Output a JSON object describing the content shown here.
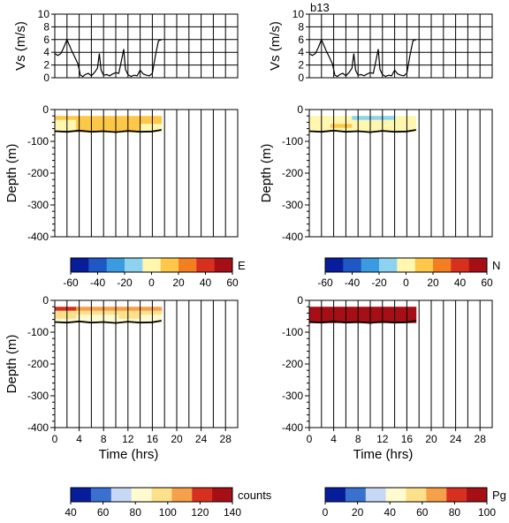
{
  "figure_tag": "b13",
  "colorbars": [
    {
      "id": "E",
      "label": "E",
      "ticks": [
        "-60",
        "-40",
        "-20",
        "0",
        "20",
        "40",
        "60"
      ],
      "colors": [
        "#081d9c",
        "#1f58c4",
        "#3a9be0",
        "#8dd3f0",
        "#fff6b0",
        "#fdc84a",
        "#f47f20",
        "#d7301f",
        "#a50f15"
      ]
    },
    {
      "id": "N",
      "label": "N",
      "ticks": [
        "-60",
        "-40",
        "-20",
        "0",
        "20",
        "40",
        "60"
      ],
      "colors": [
        "#081d9c",
        "#1f58c4",
        "#3a9be0",
        "#8dd3f0",
        "#fff6b0",
        "#fdc84a",
        "#f47f20",
        "#d7301f",
        "#a50f15"
      ]
    },
    {
      "id": "counts",
      "label": "counts",
      "ticks": [
        "40",
        "60",
        "80",
        "100",
        "120",
        "140"
      ],
      "colors": [
        "#081d9c",
        "#3a70d0",
        "#c7d8f5",
        "#fffbd0",
        "#fde08a",
        "#f6a04a",
        "#d7301f",
        "#a50f15"
      ]
    },
    {
      "id": "Pg",
      "label": "Pg",
      "ticks": [
        "0",
        "20",
        "40",
        "60",
        "80",
        "100"
      ],
      "colors": [
        "#081d9c",
        "#3a70d0",
        "#c7d8f5",
        "#fffbd0",
        "#fde08a",
        "#f6a04a",
        "#d7301f",
        "#a50f15"
      ]
    }
  ],
  "chart_data": [
    {
      "type": "line",
      "panel": "vs-left",
      "ylabel": "Vs (m/s)",
      "ylim": [
        0,
        10
      ],
      "yticks": [
        "0",
        "2",
        "4",
        "6",
        "8",
        "10"
      ],
      "xlim": [
        0,
        30
      ],
      "x": [
        0,
        0.5,
        1,
        1.5,
        2,
        2.3,
        2.8,
        3.3,
        3.8,
        4.2,
        4.6,
        5,
        5.5,
        6,
        6.5,
        7,
        7.3,
        7.6,
        8,
        8.5,
        9,
        9.5,
        10,
        10.5,
        11,
        11.3,
        11.6,
        12,
        12.5,
        13,
        13.5,
        14,
        14.5,
        15,
        15.5,
        16,
        16.5,
        17,
        17.5
      ],
      "y": [
        3.8,
        3.5,
        3.8,
        4.8,
        6,
        5.3,
        4.2,
        3.2,
        2.2,
        0.4,
        0.2,
        0.5,
        0.7,
        0.3,
        0.8,
        1.5,
        3.8,
        1.2,
        0.4,
        0.5,
        0.3,
        0.6,
        0.8,
        0.7,
        3,
        4.5,
        1.3,
        0.5,
        0.2,
        0.4,
        0.3,
        1.2,
        0.6,
        0.4,
        0.3,
        0.7,
        3.5,
        5.8,
        6
      ]
    },
    {
      "type": "line",
      "panel": "vs-right",
      "ylabel": "Vs (m/s)",
      "ylim": [
        0,
        10
      ],
      "yticks": [
        "0",
        "2",
        "4",
        "6",
        "8",
        "10"
      ],
      "xlim": [
        0,
        30
      ],
      "x": [
        0,
        0.5,
        1,
        1.5,
        2,
        2.3,
        2.8,
        3.3,
        3.8,
        4.2,
        4.6,
        5,
        5.5,
        6,
        6.5,
        7,
        7.3,
        7.6,
        8,
        8.5,
        9,
        9.5,
        10,
        10.5,
        11,
        11.3,
        11.6,
        12,
        12.5,
        13,
        13.5,
        14,
        14.5,
        15,
        15.5,
        16,
        16.5,
        17,
        17.5
      ],
      "y": [
        3.8,
        3.5,
        3.8,
        4.8,
        6,
        5.3,
        4.2,
        3.2,
        2.2,
        0.4,
        0.2,
        0.5,
        0.7,
        0.3,
        0.8,
        1.5,
        3.8,
        1.2,
        0.4,
        0.5,
        0.3,
        0.6,
        0.8,
        0.7,
        3,
        4.5,
        1.3,
        0.5,
        0.2,
        0.4,
        0.3,
        1.2,
        0.6,
        0.4,
        0.3,
        0.7,
        3.5,
        5.8,
        6
      ]
    },
    {
      "type": "heatmap",
      "panel": "E",
      "variable": "E",
      "ylabel": "Depth (m)",
      "ylim": [
        -400,
        0
      ],
      "yticks": [
        "0",
        "-100",
        "-200",
        "-300",
        "-400"
      ],
      "xlim": [
        0,
        30
      ],
      "data_x_range": [
        0,
        17.5
      ],
      "data_depth_range": [
        -20,
        -70
      ],
      "values": [
        [
          8,
          10,
          12,
          9,
          11
        ],
        [
          6,
          9,
          14,
          10,
          8
        ],
        [
          5,
          8,
          12,
          7,
          6
        ],
        [
          4,
          10,
          9,
          8,
          5
        ]
      ],
      "bottom_x": [
        0,
        2,
        4,
        6,
        8,
        10,
        12,
        14,
        16,
        17.5
      ],
      "bottom_depth": [
        -68,
        -70,
        -66,
        -70,
        -68,
        -71,
        -67,
        -70,
        -69,
        -64
      ]
    },
    {
      "type": "heatmap",
      "panel": "N",
      "variable": "N",
      "ylabel": "Depth (m)",
      "ylim": [
        -400,
        0
      ],
      "yticks": [
        "0",
        "-100",
        "-200",
        "-300",
        "-400"
      ],
      "xlim": [
        0,
        30
      ],
      "data_x_range": [
        0,
        17.5
      ],
      "data_depth_range": [
        -20,
        -70
      ],
      "values": [
        [
          -5,
          2,
          -20,
          -8,
          -3
        ],
        [
          2,
          4,
          1,
          3,
          -2
        ],
        [
          6,
          8,
          5,
          4,
          3
        ],
        [
          3,
          5,
          2,
          6,
          4
        ]
      ],
      "bottom_x": [
        0,
        2,
        4,
        6,
        8,
        10,
        12,
        14,
        16,
        17.5
      ],
      "bottom_depth": [
        -68,
        -70,
        -66,
        -70,
        -68,
        -71,
        -67,
        -70,
        -69,
        -64
      ]
    },
    {
      "type": "heatmap",
      "panel": "counts",
      "variable": "counts",
      "xlabel": "Time (hrs)",
      "ylabel": "Depth (m)",
      "ylim": [
        -400,
        0
      ],
      "yticks": [
        "0",
        "-100",
        "-200",
        "-300",
        "-400"
      ],
      "xlim": [
        0,
        30
      ],
      "xticks": [
        "0",
        "4",
        "8",
        "12",
        "16",
        "20",
        "24",
        "28"
      ],
      "data_x_range": [
        0,
        17.5
      ],
      "data_depth_range": [
        -20,
        -70
      ],
      "values": [
        [
          118,
          105,
          110,
          108,
          112
        ],
        [
          95,
          92,
          96,
          90,
          94
        ],
        [
          90,
          88,
          85,
          92,
          89
        ],
        [
          86,
          84,
          82,
          88,
          85
        ]
      ],
      "bottom_x": [
        0,
        2,
        4,
        6,
        8,
        10,
        12,
        14,
        16,
        17.5
      ],
      "bottom_depth": [
        -68,
        -70,
        -66,
        -70,
        -68,
        -71,
        -67,
        -70,
        -69,
        -64
      ]
    },
    {
      "type": "heatmap",
      "panel": "Pg",
      "variable": "Pg",
      "xlabel": "Time (hrs)",
      "ylabel": "",
      "ylim": [
        -400,
        0
      ],
      "yticks": [
        "0",
        "-100",
        "-200",
        "-300",
        "-400"
      ],
      "xlim": [
        0,
        30
      ],
      "xticks": [
        "0",
        "4",
        "8",
        "12",
        "16",
        "20",
        "24",
        "28"
      ],
      "data_x_range": [
        0,
        17.5
      ],
      "data_depth_range": [
        -20,
        -70
      ],
      "values": [
        [
          92,
          95,
          88,
          96,
          90
        ],
        [
          96,
          97,
          94,
          95,
          93
        ],
        [
          94,
          90,
          95,
          93,
          96
        ],
        [
          90,
          92,
          88,
          94,
          91
        ]
      ],
      "bottom_x": [
        0,
        2,
        4,
        6,
        8,
        10,
        12,
        14,
        16,
        17.5
      ],
      "bottom_depth": [
        -68,
        -70,
        -66,
        -70,
        -68,
        -71,
        -67,
        -70,
        -69,
        -64
      ]
    }
  ]
}
